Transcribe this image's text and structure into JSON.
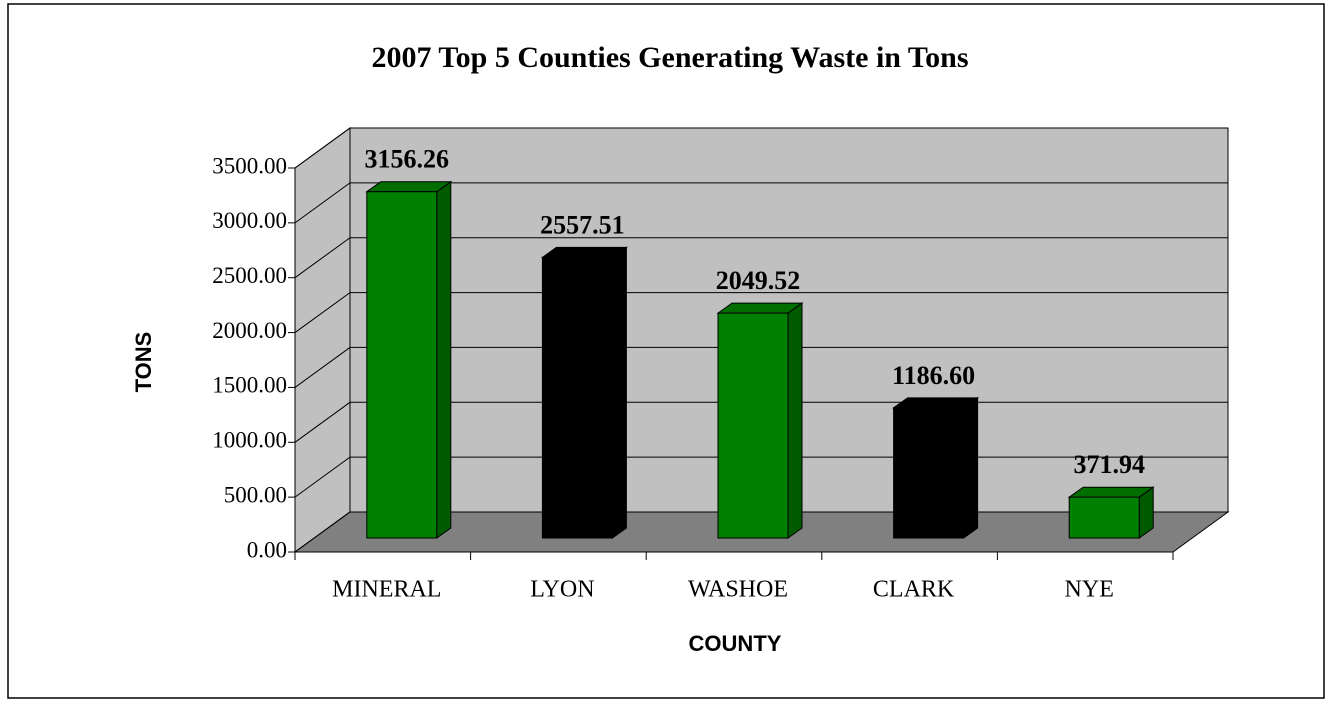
{
  "chart_data": {
    "type": "bar3d",
    "title": "2007 Top 5 Counties Generating Waste in Tons",
    "x_label": "COUNTY",
    "y_label": "TONS",
    "categories": [
      "MINERAL",
      "LYON",
      "WASHOE",
      "CLARK",
      "NYE"
    ],
    "values": [
      3156.26,
      2557.51,
      2049.52,
      1186.6,
      371.94
    ],
    "value_labels": [
      "3156.26",
      "2557.51",
      "2049.52",
      "1186.60",
      "371.94"
    ],
    "colors": [
      "#008000",
      "#000000",
      "#008000",
      "#000000",
      "#008000"
    ],
    "ylim": [
      0,
      3500
    ],
    "yticks": [
      {
        "value": 0,
        "label": "0.00"
      },
      {
        "value": 500,
        "label": "500.00"
      },
      {
        "value": 1000,
        "label": "1000.00"
      },
      {
        "value": 1500,
        "label": "1500.00"
      },
      {
        "value": 2000,
        "label": "2000.00"
      },
      {
        "value": 2500,
        "label": "2500.00"
      },
      {
        "value": 3000,
        "label": "3000.00"
      },
      {
        "value": 3500,
        "label": "3500.00"
      }
    ],
    "grid": true
  }
}
